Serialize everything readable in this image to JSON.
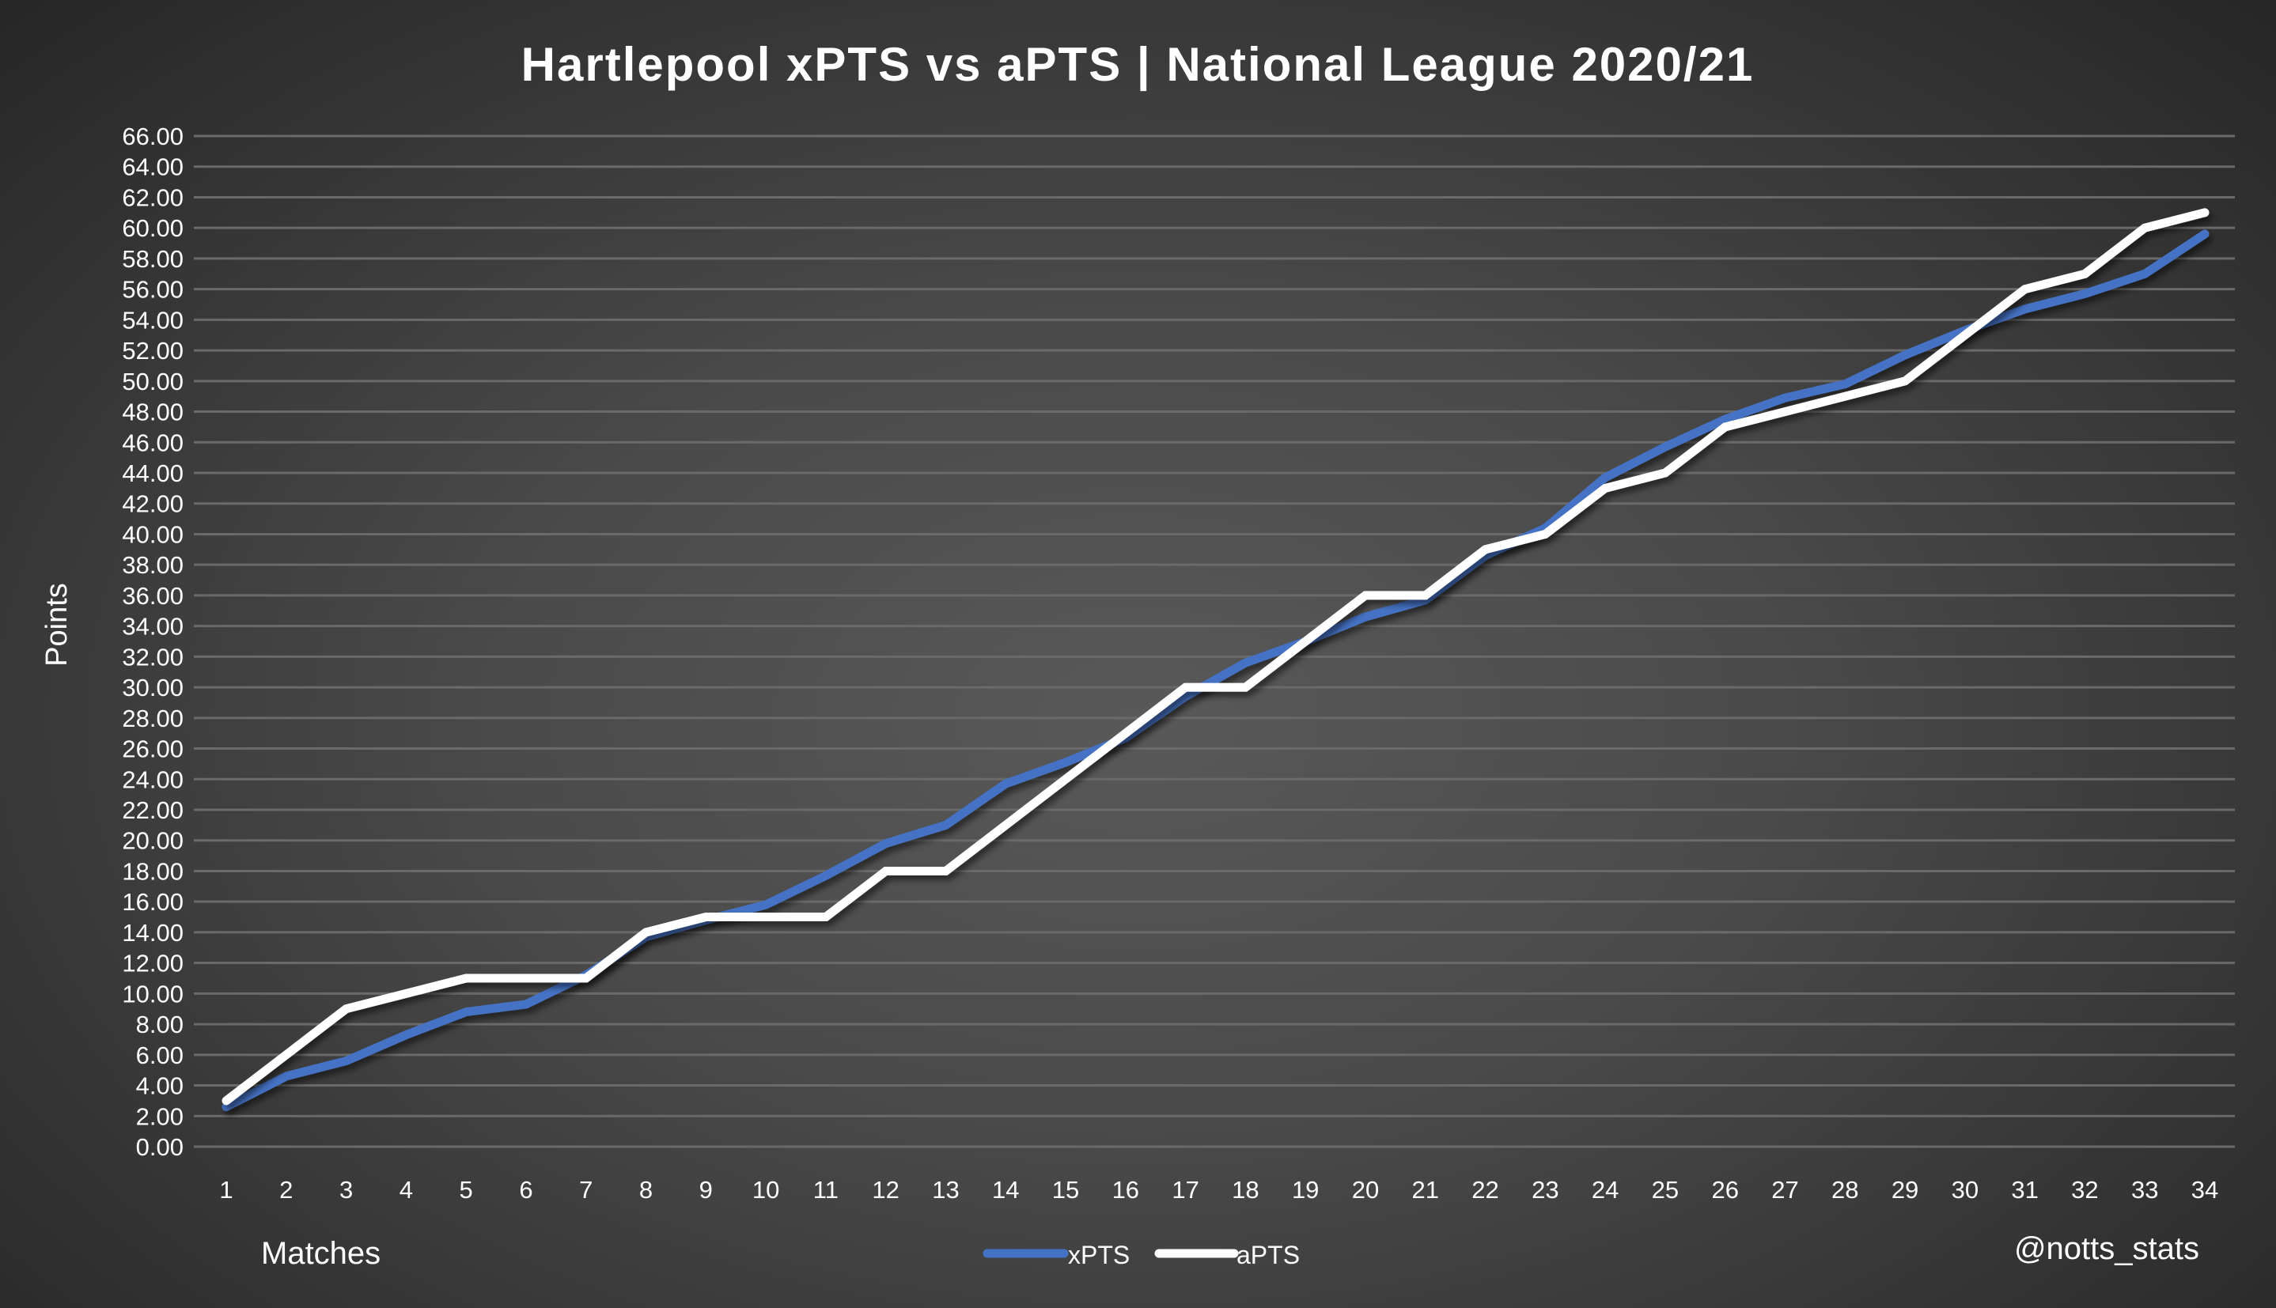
{
  "chart_data": {
    "type": "line",
    "title": "Hartlepool xPTS vs aPTS | National League 2020/21",
    "xlabel": "Matches",
    "ylabel": "Points",
    "watermark": "@notts_stats",
    "ylim": [
      0,
      66
    ],
    "ytick_step": 2,
    "grid": true,
    "legend_placement": "bottom-center",
    "x": [
      1,
      2,
      3,
      4,
      5,
      6,
      7,
      8,
      9,
      10,
      11,
      12,
      13,
      14,
      15,
      16,
      17,
      18,
      19,
      20,
      21,
      22,
      23,
      24,
      25,
      26,
      27,
      28,
      29,
      30,
      31,
      32,
      33,
      34
    ],
    "series": [
      {
        "name": "xPTS",
        "color": "#4472c4",
        "values": [
          2.6,
          4.6,
          5.6,
          7.3,
          8.8,
          9.3,
          11.2,
          13.7,
          14.8,
          15.8,
          17.7,
          19.8,
          21.0,
          23.7,
          25.1,
          26.7,
          29.4,
          31.6,
          33.0,
          34.6,
          35.7,
          38.6,
          40.4,
          43.7,
          45.7,
          47.5,
          48.9,
          49.8,
          51.7,
          53.3,
          54.7,
          55.7,
          57.0,
          59.6
        ]
      },
      {
        "name": "aPTS",
        "color": "#ffffff",
        "values": [
          3,
          6,
          9,
          10,
          11,
          11,
          11,
          14,
          15,
          15,
          15,
          18,
          18,
          21,
          24,
          27,
          30,
          30,
          33,
          36,
          36,
          39,
          40,
          43,
          44,
          47,
          48,
          49,
          50,
          53,
          56,
          57,
          60,
          61
        ]
      }
    ]
  }
}
